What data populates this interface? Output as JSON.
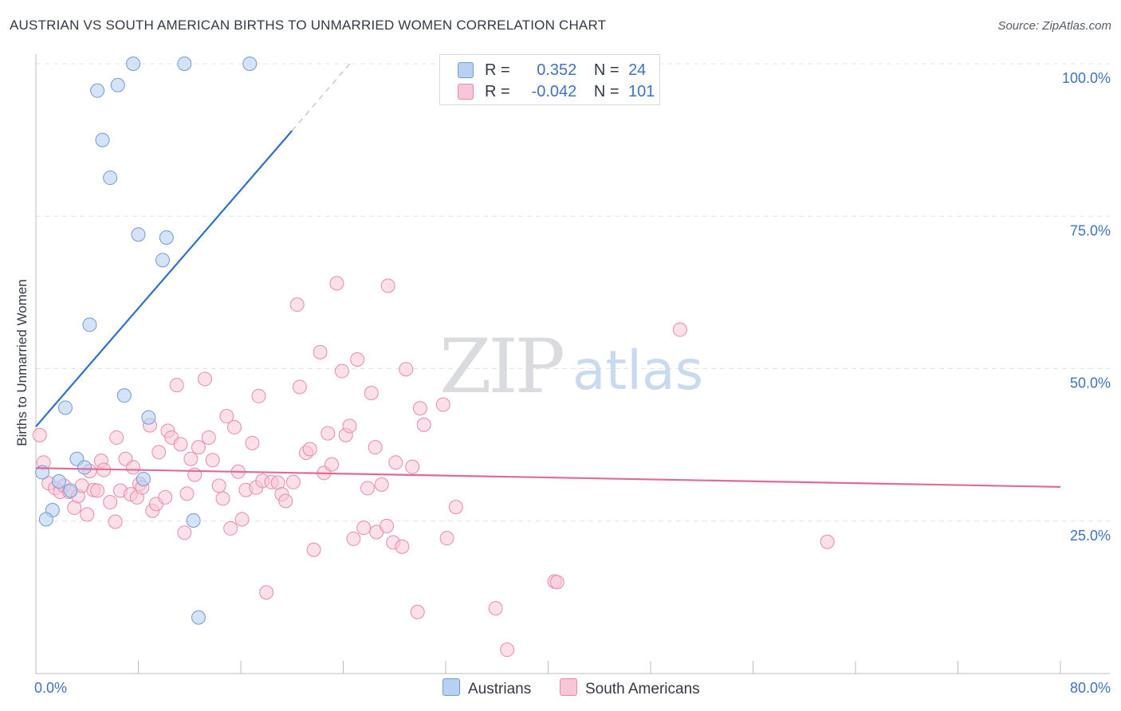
{
  "title": "AUSTRIAN VS SOUTH AMERICAN BIRTHS TO UNMARRIED WOMEN CORRELATION CHART",
  "source": "Source: ZipAtlas.com",
  "watermark": {
    "zip": "ZIP",
    "atlas": "atlas"
  },
  "colors": {
    "austrians_fill": "#b8d1f3",
    "austrians_stroke": "#6f9ad8",
    "austrians_line": "#2f6fd0",
    "south_fill": "#f8c6d6",
    "south_stroke": "#e98aab",
    "south_line": "#e06a98",
    "tick_label": "#3e73c4",
    "grid": "#dfe3e8"
  },
  "legend": {
    "austrians": {
      "r_label": "R =",
      "r_value": "0.352",
      "n_label": "N =",
      "n_value": "24"
    },
    "south": {
      "r_label": "R =",
      "r_value": "-0.042",
      "n_label": "N =",
      "n_value": "101"
    }
  },
  "chart_data": {
    "type": "scatter",
    "title": "AUSTRIAN VS SOUTH AMERICAN BIRTHS TO UNMARRIED WOMEN CORRELATION CHART",
    "xlabel": "",
    "ylabel": "Births to Unmarried Women",
    "xlim": [
      0,
      80
    ],
    "ylim": [
      0,
      105
    ],
    "x_tick_labels": [
      "0.0%",
      "80.0%"
    ],
    "y_ticks": [
      25,
      50,
      75,
      100
    ],
    "y_tick_labels": [
      "25.0%",
      "50.0%",
      "75.0%",
      "100.0%"
    ],
    "grid": true,
    "series": [
      {
        "name": "Austrians",
        "points": [
          [
            7.6,
            100
          ],
          [
            11.6,
            100
          ],
          [
            16.7,
            100
          ],
          [
            4.8,
            95.6
          ],
          [
            6.4,
            96.5
          ],
          [
            5.2,
            87.5
          ],
          [
            5.8,
            81.3
          ],
          [
            8,
            72
          ],
          [
            10.2,
            71.5
          ],
          [
            9.9,
            67.8
          ],
          [
            4.2,
            57.2
          ],
          [
            6.9,
            45.6
          ],
          [
            2.3,
            43.6
          ],
          [
            8.8,
            42
          ],
          [
            3.2,
            35.2
          ],
          [
            3.8,
            33.8
          ],
          [
            8.4,
            31.9
          ],
          [
            0.5,
            33
          ],
          [
            1.8,
            31.5
          ],
          [
            2.7,
            30
          ],
          [
            1.3,
            26.8
          ],
          [
            0.8,
            25.3
          ],
          [
            12.3,
            25.1
          ],
          [
            12.7,
            9.2
          ]
        ],
        "trend": {
          "x1": 0,
          "y1": 40.5,
          "x2": 20,
          "y2": 89,
          "dash_to_x": 24.5,
          "dash_to_y": 100
        }
      },
      {
        "name": "South Americans",
        "points": [
          [
            0.3,
            39.1
          ],
          [
            0.6,
            34.6
          ],
          [
            1,
            31.2
          ],
          [
            1.5,
            30.4
          ],
          [
            1.9,
            29.8
          ],
          [
            2.2,
            30.8
          ],
          [
            2.6,
            29.8
          ],
          [
            3,
            27.2
          ],
          [
            3.3,
            29.1
          ],
          [
            3.6,
            30.8
          ],
          [
            4,
            26.1
          ],
          [
            4.2,
            33.2
          ],
          [
            4.5,
            30.1
          ],
          [
            4.8,
            30
          ],
          [
            5.1,
            34.9
          ],
          [
            5.3,
            33.4
          ],
          [
            5.8,
            28.1
          ],
          [
            6.2,
            24.9
          ],
          [
            6.3,
            38.7
          ],
          [
            6.6,
            30
          ],
          [
            7,
            35.2
          ],
          [
            7.4,
            29.4
          ],
          [
            7.6,
            33.8
          ],
          [
            7.9,
            28.9
          ],
          [
            8.1,
            31.1
          ],
          [
            8.3,
            30.5
          ],
          [
            8.9,
            40.7
          ],
          [
            9.1,
            26.7
          ],
          [
            9.4,
            27.8
          ],
          [
            9.6,
            36.3
          ],
          [
            10.1,
            28.9
          ],
          [
            10.3,
            39.8
          ],
          [
            10.6,
            38.7
          ],
          [
            11,
            47.3
          ],
          [
            11.3,
            37.6
          ],
          [
            11.6,
            23.1
          ],
          [
            11.8,
            29.5
          ],
          [
            12.1,
            35.2
          ],
          [
            12.4,
            32.6
          ],
          [
            12.7,
            37.1
          ],
          [
            13.2,
            48.3
          ],
          [
            13.5,
            38.7
          ],
          [
            13.8,
            35
          ],
          [
            14.3,
            30.8
          ],
          [
            14.6,
            28.7
          ],
          [
            14.9,
            42.2
          ],
          [
            15.2,
            23.8
          ],
          [
            15.5,
            40.4
          ],
          [
            15.8,
            33.1
          ],
          [
            16.1,
            25.3
          ],
          [
            16.4,
            30.1
          ],
          [
            16.9,
            37.8
          ],
          [
            17.2,
            30.5
          ],
          [
            17.4,
            45.5
          ],
          [
            17.7,
            31.6
          ],
          [
            18,
            13.3
          ],
          [
            18.4,
            31.4
          ],
          [
            18.9,
            31.3
          ],
          [
            19.2,
            29.4
          ],
          [
            19.5,
            28.3
          ],
          [
            20.1,
            31.4
          ],
          [
            20.4,
            60.5
          ],
          [
            20.6,
            47
          ],
          [
            21.1,
            36.2
          ],
          [
            21.4,
            36.8
          ],
          [
            21.7,
            20.3
          ],
          [
            22.2,
            52.7
          ],
          [
            22.5,
            32.9
          ],
          [
            22.8,
            39.4
          ],
          [
            23.1,
            34.3
          ],
          [
            23.5,
            64
          ],
          [
            23.9,
            49.6
          ],
          [
            24.2,
            39.1
          ],
          [
            24.5,
            40.6
          ],
          [
            24.8,
            22.1
          ],
          [
            25.1,
            51.5
          ],
          [
            25.6,
            23.9
          ],
          [
            26.2,
            46
          ],
          [
            26.5,
            37.1
          ],
          [
            26.6,
            23.2
          ],
          [
            27,
            31
          ],
          [
            27.4,
            24.2
          ],
          [
            27.9,
            21.5
          ],
          [
            28.1,
            34.6
          ],
          [
            28.6,
            20.8
          ],
          [
            28.9,
            49.9
          ],
          [
            29.4,
            33.9
          ],
          [
            29.8,
            10.1
          ],
          [
            30,
            43.5
          ],
          [
            30.3,
            40.8
          ],
          [
            31.8,
            44.1
          ],
          [
            32.1,
            22.2
          ],
          [
            32.8,
            27.3
          ],
          [
            35.9,
            10.7
          ],
          [
            36.8,
            3.9
          ],
          [
            40.5,
            15.1
          ],
          [
            40.7,
            15
          ],
          [
            50.3,
            56.4
          ],
          [
            61.8,
            21.6
          ],
          [
            27.5,
            63.6
          ],
          [
            25.9,
            30.4
          ]
        ],
        "trend": {
          "x1": 0,
          "y1": 33.7,
          "x2": 80,
          "y2": 30.6
        }
      }
    ]
  }
}
